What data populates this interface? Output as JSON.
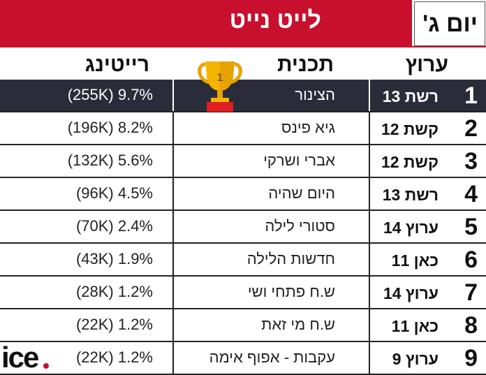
{
  "header": {
    "title": "לייט נייט",
    "day": "יום ג'"
  },
  "columns": {
    "network": "ערוץ",
    "program": "תכנית",
    "rating": "רייטינג"
  },
  "rows": [
    {
      "rank": "1",
      "network": "רשת 13",
      "program": "הצינור",
      "rating": "(255K) 9.7%"
    },
    {
      "rank": "2",
      "network": "קשת 12",
      "program": "גיא פינס",
      "rating": "(196K) 8.2%"
    },
    {
      "rank": "3",
      "network": "קשת 12",
      "program": "אברי ושרקי",
      "rating": "(132K) 5.6%"
    },
    {
      "rank": "4",
      "network": "רשת 13",
      "program": "היום שהיה",
      "rating": "(96K) 4.5%"
    },
    {
      "rank": "5",
      "network": "ערוץ 14",
      "program": "סטורי לילה",
      "rating": "(70K) 2.4%"
    },
    {
      "rank": "6",
      "network": "כאן 11",
      "program": "חדשות הלילה",
      "rating": "(43K) 1.9%"
    },
    {
      "rank": "7",
      "network": "ערוץ 14",
      "program": "ש.ח פתחי ושי",
      "rating": "(28K) 1.2%"
    },
    {
      "rank": "8",
      "network": "כאן 11",
      "program": "ש.ח מי זאת",
      "rating": "(22K) 1.2%"
    },
    {
      "rank": "9",
      "network": "ערוץ 9",
      "program": "עקבות - אפוף אימה",
      "rating": "(22K) 1.2%"
    }
  ],
  "trophy": {
    "icon": "trophy-icon",
    "label": "1",
    "color": "#f5b400"
  },
  "logo": {
    "text": "ice",
    "dot_color": "#c8102e"
  },
  "colors": {
    "accent": "#c8102e",
    "top_row": "#2b2c3a"
  }
}
